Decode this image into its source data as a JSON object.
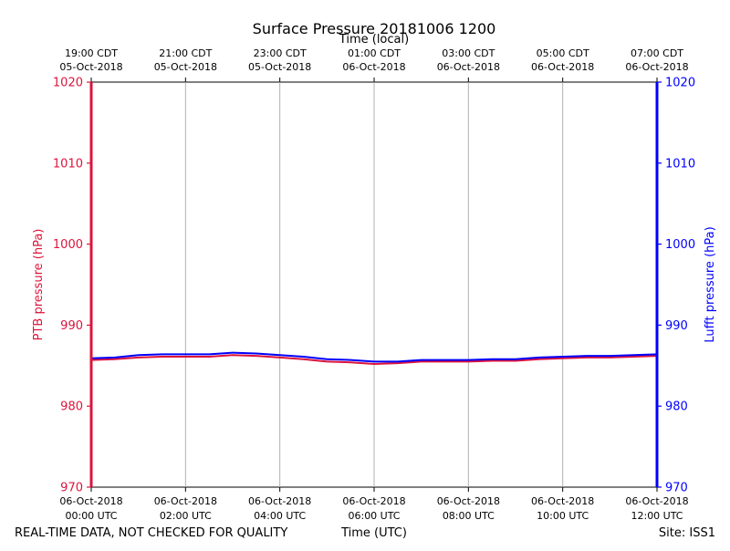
{
  "chart_data": {
    "type": "line",
    "title": "Surface Pressure 20181006 1200",
    "top_axis_label": "Time (local)",
    "xlabel": "Time (UTC)",
    "ylabel_left": "PTB pressure (hPa)",
    "ylabel_right": "Lufft pressure (hPa)",
    "ylim": [
      970,
      1020
    ],
    "xlim_hours": [
      0,
      12
    ],
    "y_ticks": [
      "970",
      "980",
      "990",
      "1000",
      "1010",
      "1020"
    ],
    "x_ticks": [
      {
        "hour": 0,
        "line1": "06-Oct-2018",
        "line2": "00:00 UTC"
      },
      {
        "hour": 2,
        "line1": "06-Oct-2018",
        "line2": "02:00 UTC"
      },
      {
        "hour": 4,
        "line1": "06-Oct-2018",
        "line2": "04:00 UTC"
      },
      {
        "hour": 6,
        "line1": "06-Oct-2018",
        "line2": "06:00 UTC"
      },
      {
        "hour": 8,
        "line1": "06-Oct-2018",
        "line2": "08:00 UTC"
      },
      {
        "hour": 10,
        "line1": "06-Oct-2018",
        "line2": "10:00 UTC"
      },
      {
        "hour": 12,
        "line1": "06-Oct-2018",
        "line2": "12:00 UTC"
      }
    ],
    "top_ticks": [
      {
        "hour": 0,
        "line1": "19:00 CDT",
        "line2": "05-Oct-2018"
      },
      {
        "hour": 2,
        "line1": "21:00 CDT",
        "line2": "05-Oct-2018"
      },
      {
        "hour": 4,
        "line1": "23:00 CDT",
        "line2": "05-Oct-2018"
      },
      {
        "hour": 6,
        "line1": "01:00 CDT",
        "line2": "06-Oct-2018"
      },
      {
        "hour": 8,
        "line1": "03:00 CDT",
        "line2": "06-Oct-2018"
      },
      {
        "hour": 10,
        "line1": "05:00 CDT",
        "line2": "06-Oct-2018"
      },
      {
        "hour": 12,
        "line1": "07:00 CDT",
        "line2": "06-Oct-2018"
      }
    ],
    "x": [
      0,
      0.5,
      1,
      1.5,
      2,
      2.5,
      3,
      3.5,
      4,
      4.5,
      5,
      5.5,
      6,
      6.5,
      7,
      7.5,
      8,
      8.5,
      9,
      9.5,
      10,
      10.5,
      11,
      11.5,
      12
    ],
    "series": [
      {
        "name": "PTB pressure",
        "color": "#dc143c",
        "values": [
          985.7,
          985.8,
          986.0,
          986.1,
          986.1,
          986.1,
          986.3,
          986.2,
          986.0,
          985.8,
          985.5,
          985.4,
          985.2,
          985.3,
          985.5,
          985.5,
          985.5,
          985.6,
          985.6,
          985.8,
          985.9,
          986.0,
          986.0,
          986.1,
          986.2
        ]
      },
      {
        "name": "Lufft pressure",
        "color": "#0000ff",
        "values": [
          985.9,
          986.0,
          986.3,
          986.4,
          986.4,
          986.4,
          986.6,
          986.5,
          986.3,
          986.1,
          985.8,
          985.7,
          985.5,
          985.5,
          985.7,
          985.7,
          985.7,
          985.8,
          985.8,
          986.0,
          986.1,
          986.2,
          986.2,
          986.3,
          986.4
        ]
      }
    ],
    "colors": {
      "left_axis": "#dc143c",
      "right_axis": "#0000ff",
      "grid": "#b0b0b0"
    }
  },
  "footer": {
    "left": "REAL-TIME DATA, NOT CHECKED FOR QUALITY",
    "right": "Site: ISS1"
  }
}
